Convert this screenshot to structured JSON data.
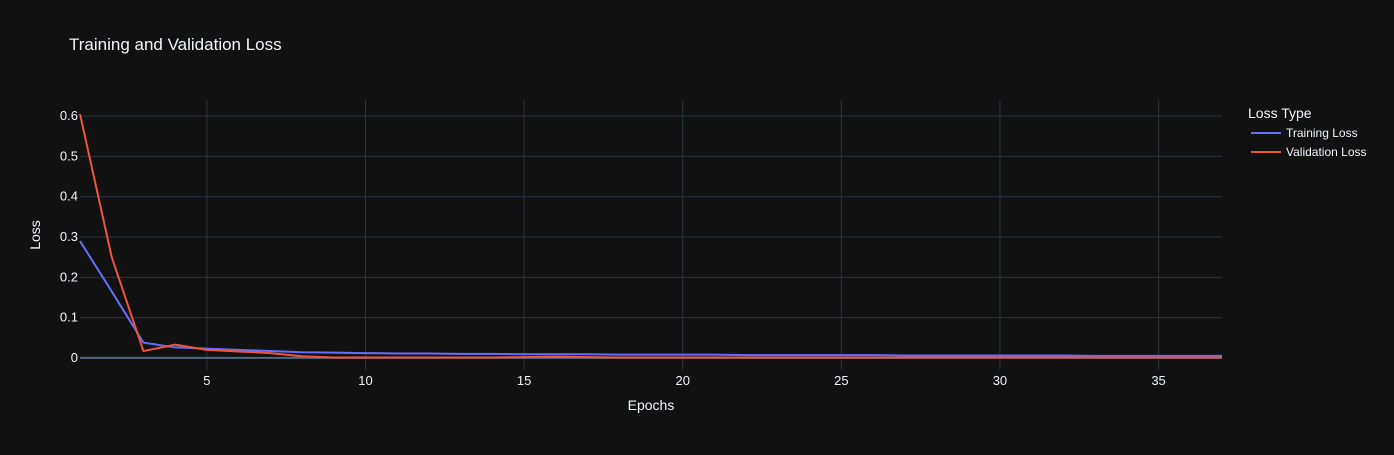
{
  "chart_data": {
    "type": "line",
    "title": "Training and Validation Loss",
    "xlabel": "Epochs",
    "ylabel": "Loss",
    "xlim": [
      1,
      37
    ],
    "ylim": [
      -0.03,
      0.64
    ],
    "xticks": [
      5,
      10,
      15,
      20,
      25,
      30,
      35
    ],
    "yticks": [
      0,
      0.1,
      0.2,
      0.3,
      0.4,
      0.5,
      0.6
    ],
    "ytick_labels": [
      "0",
      "0.1",
      "0.2",
      "0.3",
      "0.4",
      "0.5",
      "0.6"
    ],
    "grid": true,
    "legend": {
      "title": "Loss Type",
      "placement": "top-right outside"
    },
    "x": [
      1,
      2,
      3,
      4,
      5,
      6,
      7,
      8,
      9,
      10,
      11,
      12,
      13,
      14,
      15,
      16,
      17,
      18,
      19,
      20,
      21,
      22,
      23,
      24,
      25,
      26,
      27,
      28,
      29,
      30,
      31,
      32,
      33,
      34,
      35,
      36,
      37
    ],
    "series": [
      {
        "name": "Training Loss",
        "color": "#636efa",
        "values": [
          0.29,
          0.165,
          0.038,
          0.026,
          0.023,
          0.02,
          0.017,
          0.014,
          0.013,
          0.012,
          0.011,
          0.011,
          0.01,
          0.01,
          0.009,
          0.009,
          0.009,
          0.008,
          0.008,
          0.008,
          0.008,
          0.007,
          0.007,
          0.007,
          0.007,
          0.007,
          0.006,
          0.006,
          0.006,
          0.006,
          0.006,
          0.006,
          0.005,
          0.005,
          0.005,
          0.005,
          0.005
        ]
      },
      {
        "name": "Validation Loss",
        "color": "#ef553b",
        "values": [
          0.605,
          0.25,
          0.017,
          0.033,
          0.02,
          0.016,
          0.012,
          0.004,
          0.001,
          0.001,
          0.001,
          0.001,
          0.001,
          0.001,
          0.002,
          0.003,
          0.002,
          0.001,
          0.001,
          0.001,
          0.001,
          0.001,
          0.001,
          0.001,
          0.001,
          0.001,
          0.001,
          0.001,
          0.001,
          0.001,
          0.001,
          0.001,
          0.001,
          0.001,
          0.001,
          0.001,
          0.001
        ]
      }
    ]
  }
}
